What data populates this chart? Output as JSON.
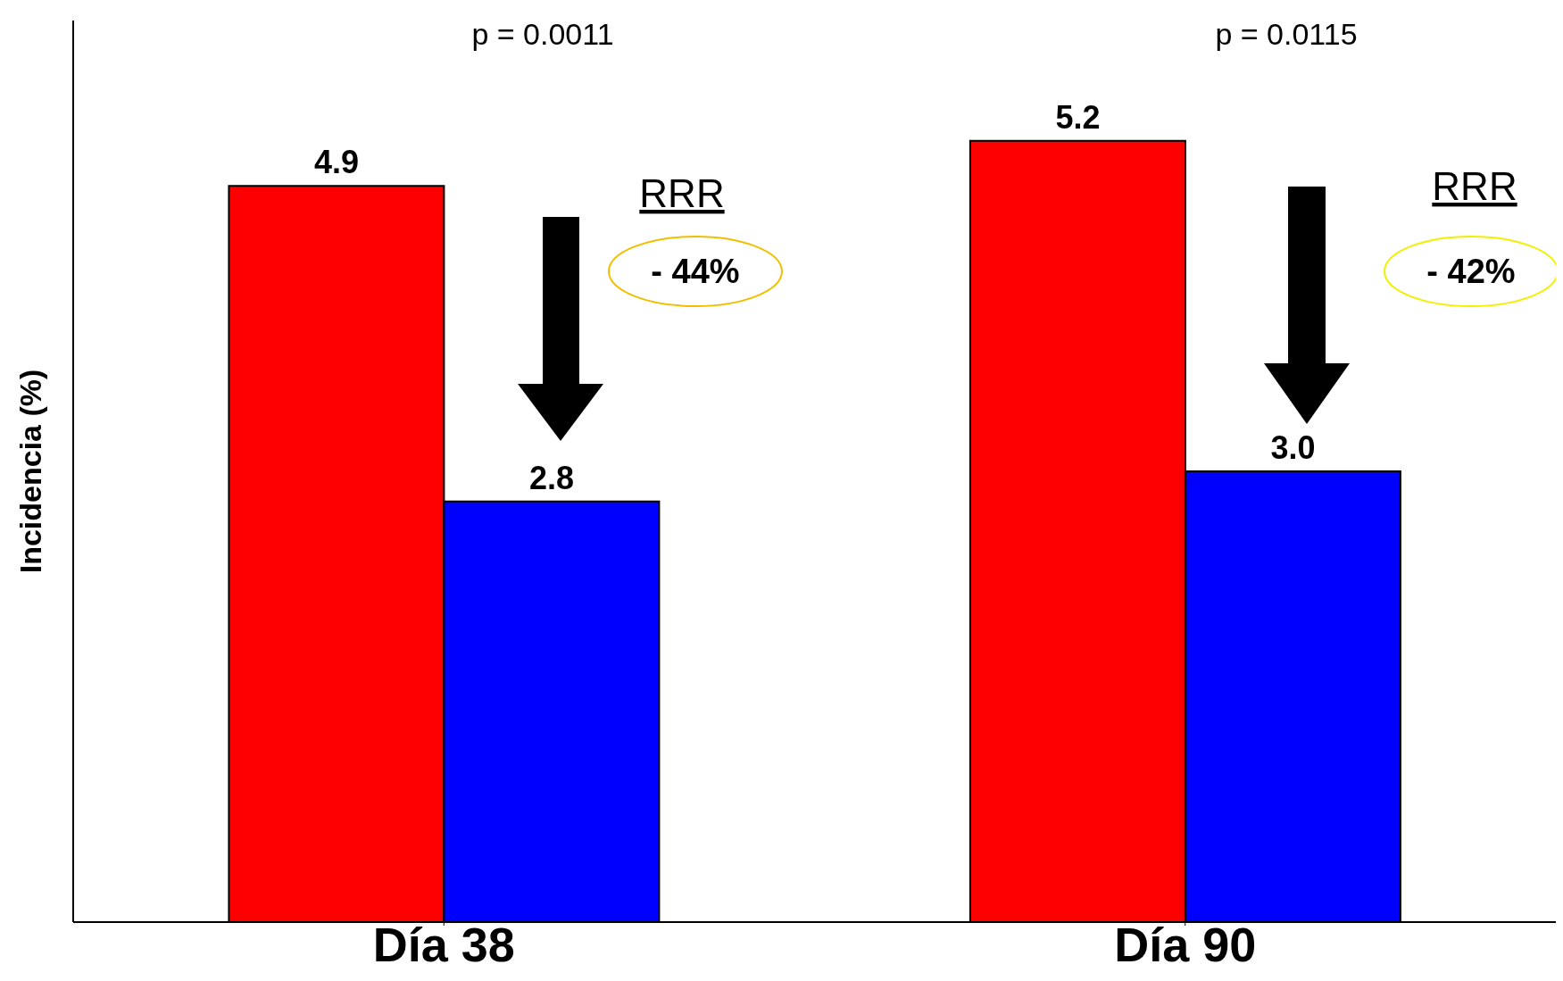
{
  "chart_data": {
    "type": "bar",
    "ylabel": "Incidencia (%)",
    "categories": [
      "Día 38",
      "Día 90"
    ],
    "series": [
      {
        "color": "#ff0000",
        "values": [
          4.9,
          5.2
        ],
        "value_labels": [
          "4.9",
          "5.2"
        ]
      },
      {
        "color": "#0000ff",
        "values": [
          2.8,
          3.0
        ],
        "value_labels": [
          "2.8",
          "3.0"
        ]
      }
    ],
    "ylim": [
      0,
      6
    ],
    "tick_labels": "x",
    "grid": false,
    "legend": false,
    "annotations": [
      "p = 0.0011",
      "p = 0.0115",
      "RRR",
      "- 44%",
      "RRR",
      "- 42%"
    ]
  }
}
